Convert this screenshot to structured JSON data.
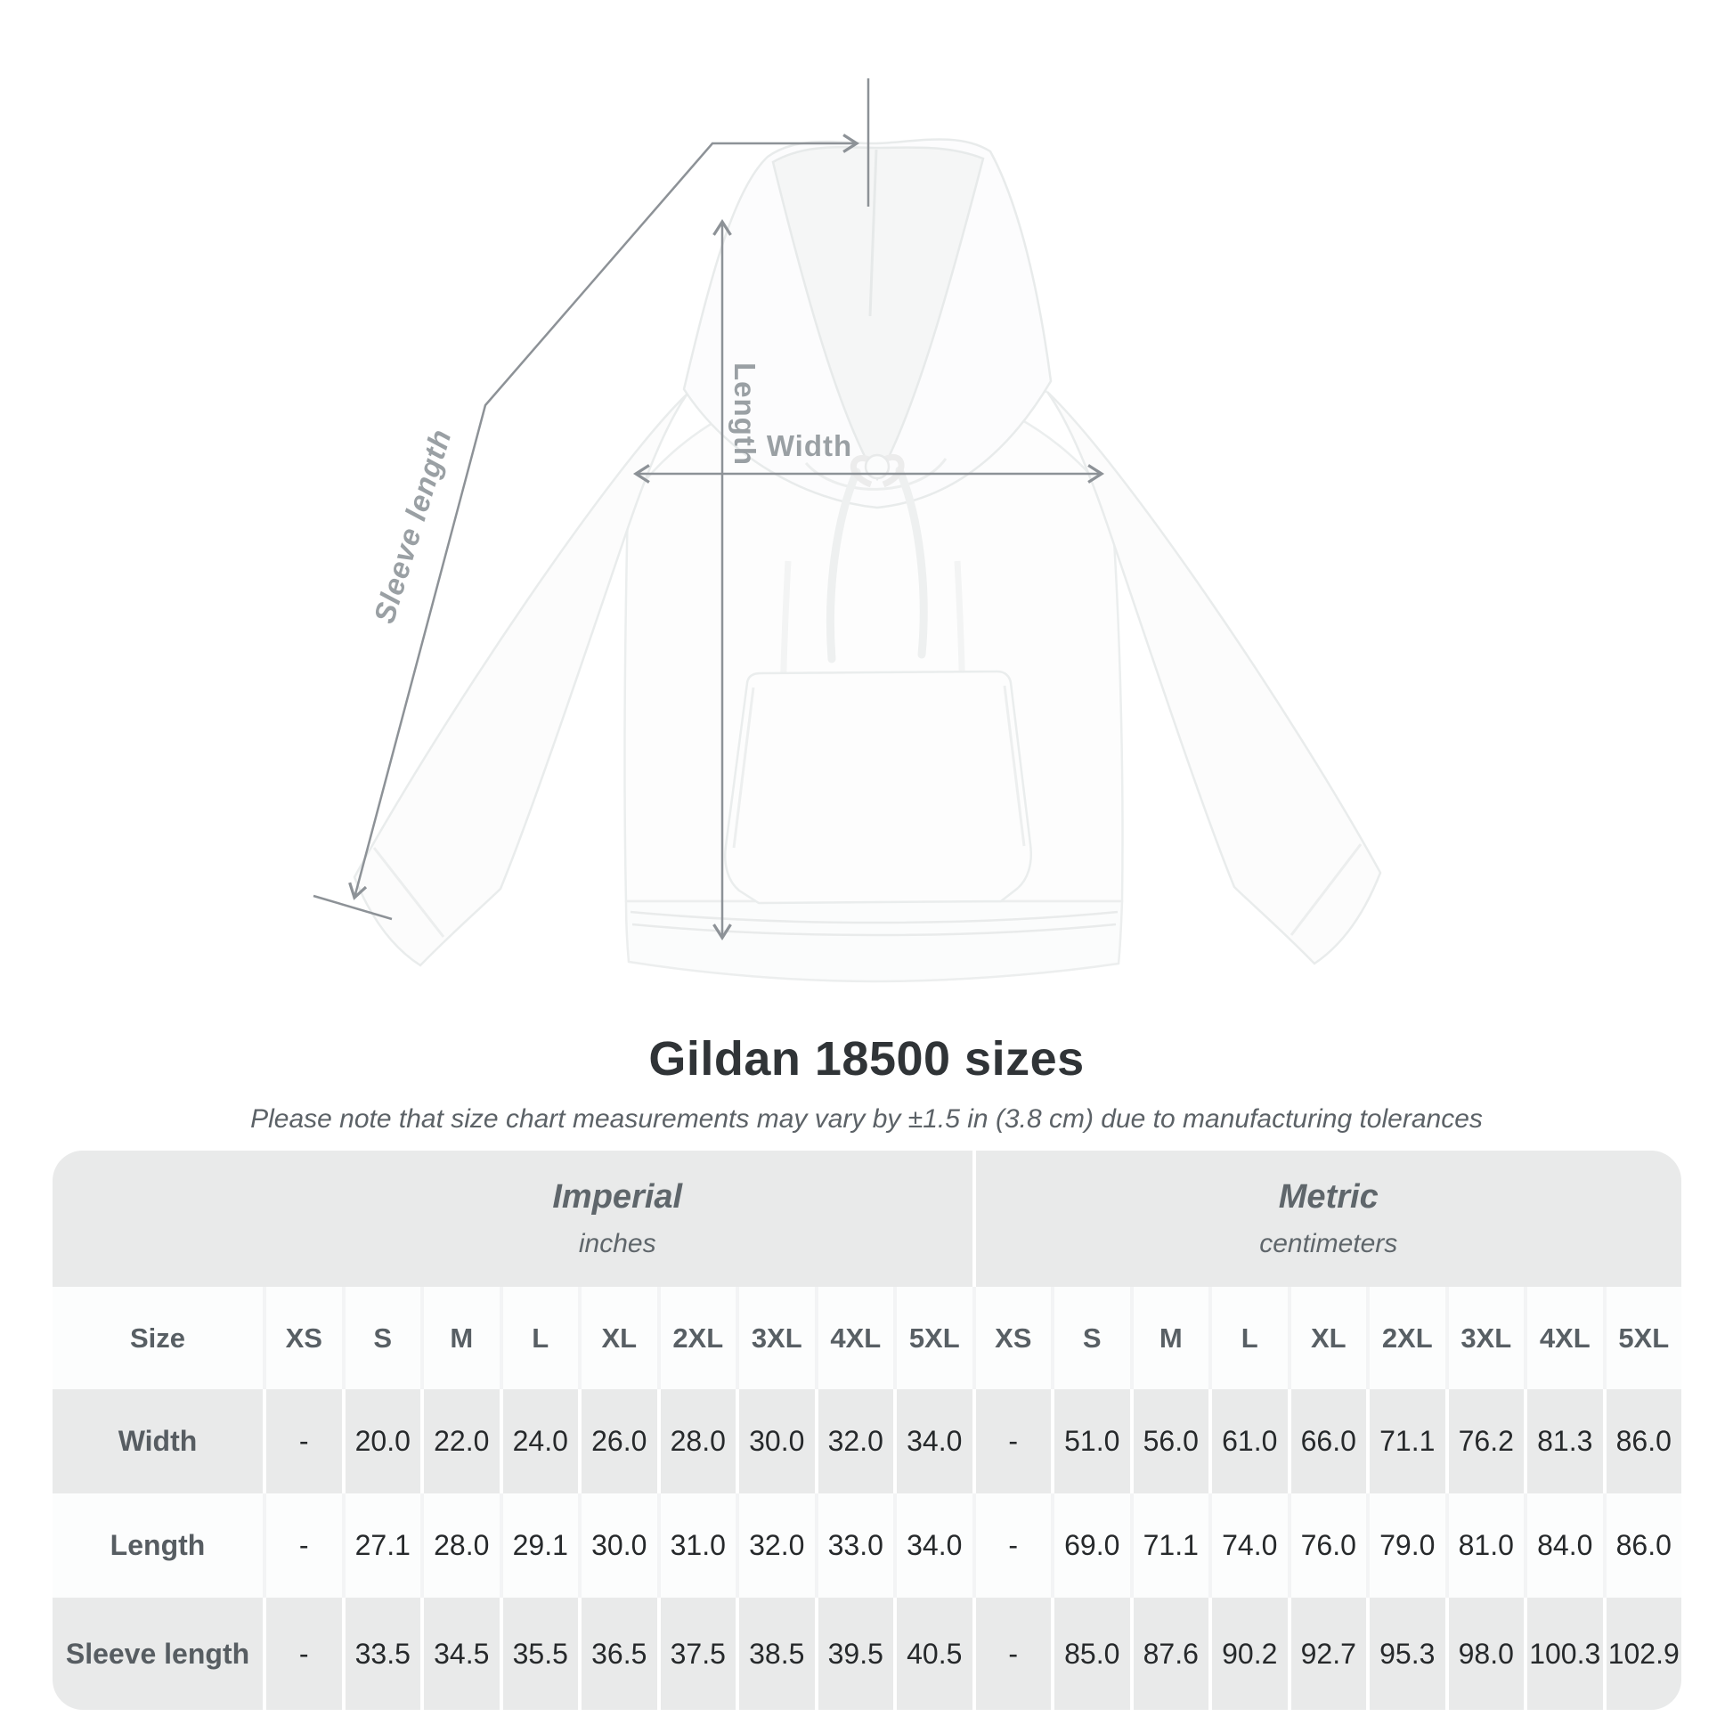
{
  "diagram": {
    "measurements": {
      "length_label": "Length",
      "width_label": "Width",
      "sleeve_label": "Sleeve length"
    }
  },
  "heading": {
    "title": "Gildan 18500 sizes",
    "note": "Please note that size chart measurements may vary by ±1.5 in (3.8 cm) due to manufacturing tolerances"
  },
  "size_table": {
    "size_column_header": "Size",
    "unit_groups": [
      {
        "name": "Imperial",
        "unit": "inches"
      },
      {
        "name": "Metric",
        "unit": "centimeters"
      }
    ],
    "sizes": [
      "XS",
      "S",
      "M",
      "L",
      "XL",
      "2XL",
      "3XL",
      "4XL",
      "5XL"
    ],
    "rows": [
      {
        "label": "Width",
        "imperial": [
          "-",
          "20.0",
          "22.0",
          "24.0",
          "26.0",
          "28.0",
          "30.0",
          "32.0",
          "34.0"
        ],
        "metric": [
          "-",
          "51.0",
          "56.0",
          "61.0",
          "66.0",
          "71.1",
          "76.2",
          "81.3",
          "86.0"
        ]
      },
      {
        "label": "Length",
        "imperial": [
          "-",
          "27.1",
          "28.0",
          "29.1",
          "30.0",
          "31.0",
          "32.0",
          "33.0",
          "34.0"
        ],
        "metric": [
          "-",
          "69.0",
          "71.1",
          "74.0",
          "76.0",
          "79.0",
          "81.0",
          "84.0",
          "86.0"
        ]
      },
      {
        "label": "Sleeve length",
        "imperial": [
          "-",
          "33.5",
          "34.5",
          "35.5",
          "36.5",
          "37.5",
          "38.5",
          "39.5",
          "40.5"
        ],
        "metric": [
          "-",
          "85.0",
          "87.6",
          "90.2",
          "92.7",
          "95.3",
          "98.0",
          "100.3",
          "102.9"
        ]
      }
    ]
  },
  "colors": {
    "table_background": "#e9eaea",
    "measure_line": "#8d9297",
    "measure_label": "#9aa0a4"
  }
}
